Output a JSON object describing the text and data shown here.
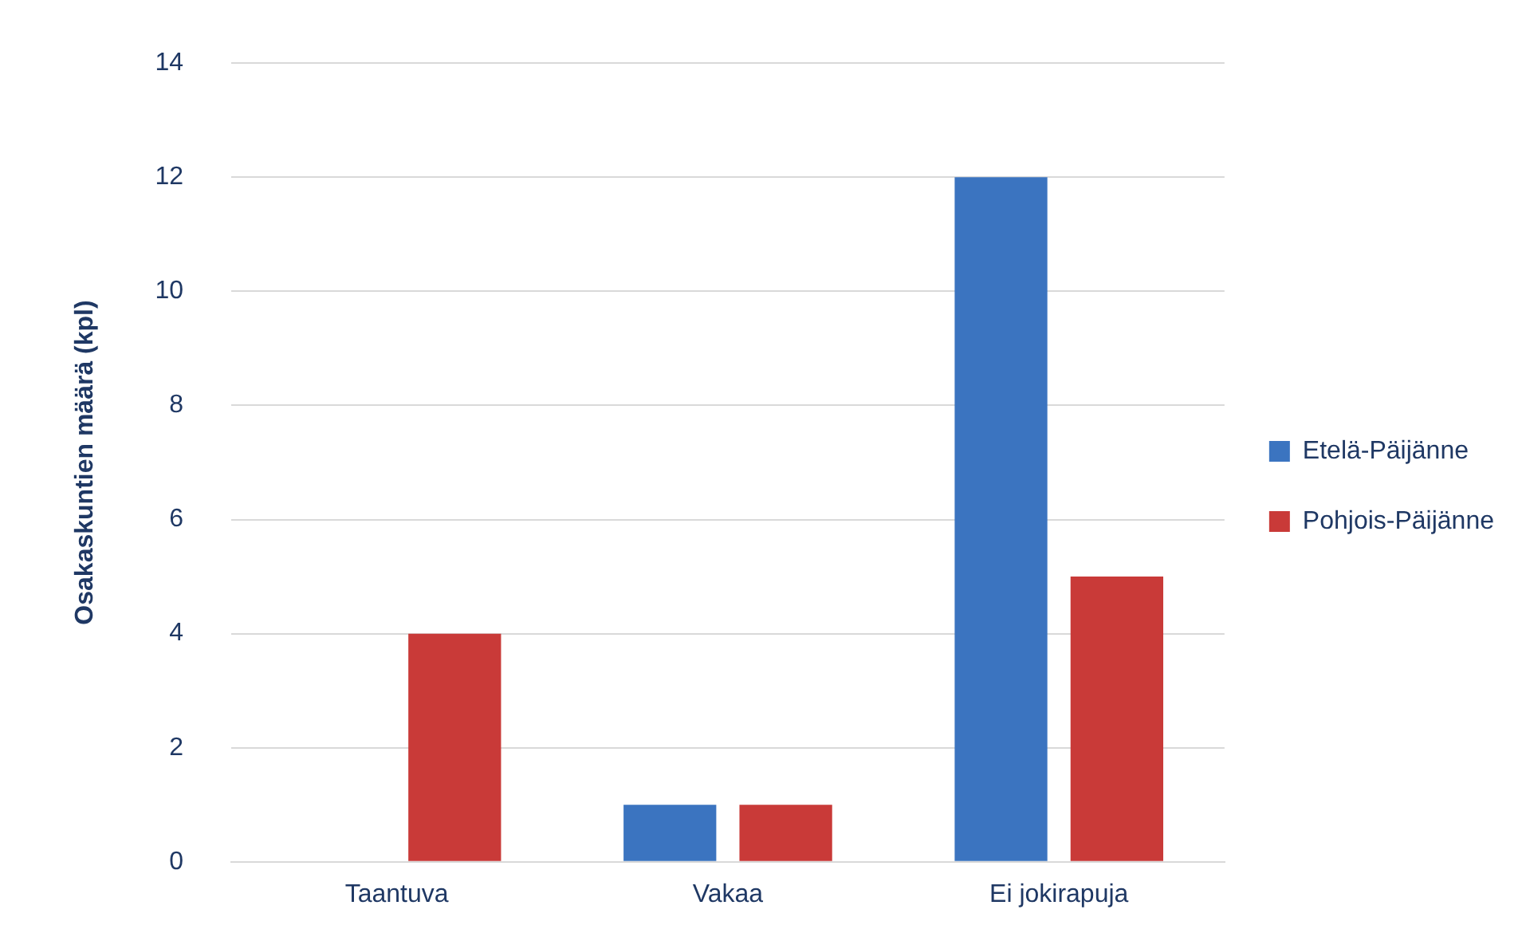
{
  "chart_data": {
    "type": "bar",
    "ylabel": "Osakaskuntien määrä (kpl)",
    "categories": [
      "Taantuva",
      "Vakaa",
      "Ei jokirapuja"
    ],
    "series": [
      {
        "name": "Etelä-Päijänne",
        "color": "#3b74c0",
        "values": [
          0,
          1,
          12
        ]
      },
      {
        "name": "Pohjois-Päijänne",
        "color": "#c93a38",
        "values": [
          4,
          1,
          5
        ]
      }
    ],
    "ylim": [
      0,
      14
    ],
    "yticks": [
      0,
      2,
      4,
      6,
      8,
      10,
      12,
      14
    ],
    "grid": "y",
    "legend": "right"
  }
}
